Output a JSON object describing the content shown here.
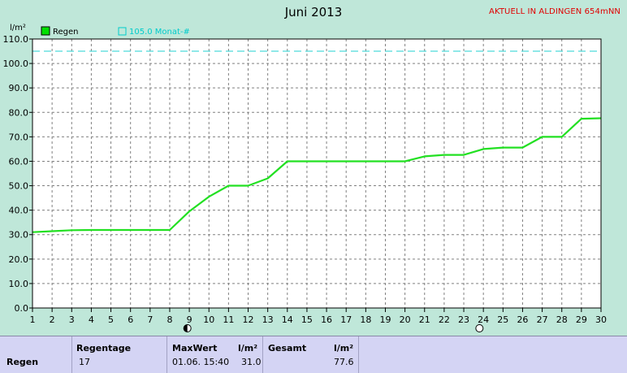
{
  "chart_data": {
    "type": "line",
    "title": "Juni 2013",
    "ylabel": "l/m²",
    "ylim": [
      0,
      110
    ],
    "xlim": [
      1,
      30
    ],
    "y_ticks": [
      "0.0",
      "10.0",
      "20.0",
      "30.0",
      "40.0",
      "50.0",
      "60.0",
      "70.0",
      "80.0",
      "90.0",
      "100.0",
      "110.0"
    ],
    "x_ticks": [
      "1",
      "2",
      "3",
      "4",
      "5",
      "6",
      "7",
      "8",
      "9",
      "10",
      "11",
      "12",
      "13",
      "14",
      "15",
      "16",
      "17",
      "18",
      "19",
      "20",
      "21",
      "22",
      "23",
      "24",
      "25",
      "26",
      "27",
      "28",
      "29",
      "30"
    ],
    "grid": true,
    "legend": [
      {
        "label": "Regen",
        "color": "#00e000",
        "marker": "filled-square"
      },
      {
        "label": "105.0 Monat-#",
        "color": "#00cccc",
        "marker": "open-square"
      }
    ],
    "series": [
      {
        "name": "Regen",
        "color": "#22e022",
        "points": [
          [
            1,
            31.0
          ],
          [
            2,
            31.4
          ],
          [
            3,
            31.8
          ],
          [
            4,
            31.9
          ],
          [
            5,
            31.9
          ],
          [
            6,
            31.9
          ],
          [
            7,
            31.9
          ],
          [
            8,
            31.9
          ],
          [
            9,
            39.5
          ],
          [
            10,
            45.5
          ],
          [
            11,
            50.0
          ],
          [
            12,
            50.0
          ],
          [
            13,
            53.0
          ],
          [
            14,
            60.0
          ],
          [
            15,
            60.0
          ],
          [
            16,
            60.0
          ],
          [
            17,
            60.0
          ],
          [
            18,
            60.0
          ],
          [
            19,
            60.0
          ],
          [
            20,
            60.0
          ],
          [
            21,
            62.0
          ],
          [
            22,
            62.6
          ],
          [
            23,
            62.6
          ],
          [
            24,
            65.0
          ],
          [
            25,
            65.6
          ],
          [
            26,
            65.6
          ],
          [
            27,
            70.0
          ],
          [
            28,
            70.0
          ],
          [
            29,
            77.4
          ],
          [
            30,
            77.6
          ]
        ]
      }
    ],
    "reference_line": {
      "name": "105.0 Monat-#",
      "value": 105.0,
      "color": "#22d0d0"
    },
    "moon_markers": [
      {
        "day": 8.9,
        "phase": "half"
      },
      {
        "day": 23.8,
        "phase": "full"
      }
    ]
  },
  "header": {
    "title": "Juni 2013",
    "alert": "AKTUELL IN ALDINGEN 654mNN"
  },
  "table": {
    "row_label": "Regen",
    "regentage_header": "Regentage",
    "regentage_value": "17",
    "maxwert_header": "MaxWert",
    "maxwert_unit": "l/m²",
    "maxwert_date": "01.06. 15:40",
    "maxwert_value": "31.0",
    "gesamt_header": "Gesamt",
    "gesamt_unit": "l/m²",
    "gesamt_value": "77.6"
  }
}
